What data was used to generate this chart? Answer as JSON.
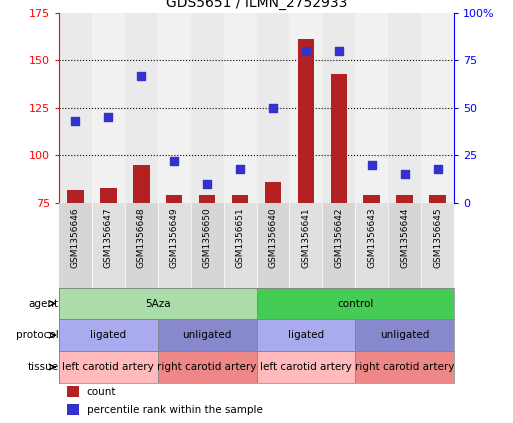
{
  "title": "GDS5651 / ILMN_2752933",
  "samples": [
    "GSM1356646",
    "GSM1356647",
    "GSM1356648",
    "GSM1356649",
    "GSM1356650",
    "GSM1356651",
    "GSM1356640",
    "GSM1356641",
    "GSM1356642",
    "GSM1356643",
    "GSM1356644",
    "GSM1356645"
  ],
  "counts": [
    82,
    83,
    95,
    79,
    79,
    79,
    86,
    161,
    143,
    79,
    79,
    79
  ],
  "percentile": [
    43,
    45,
    67,
    22,
    10,
    18,
    50,
    80,
    80,
    20,
    15,
    18
  ],
  "ylim_left": [
    75,
    175
  ],
  "ylim_right": [
    0,
    100
  ],
  "yticks_left": [
    75,
    100,
    125,
    150,
    175
  ],
  "yticks_right": [
    0,
    25,
    50,
    75,
    100
  ],
  "ytick_labels_right": [
    "0",
    "25",
    "50",
    "75",
    "100%"
  ],
  "bar_color": "#b22222",
  "dot_color": "#3333cc",
  "agent_groups": [
    {
      "label": "5Aza",
      "start": 0,
      "end": 6,
      "color": "#aaddaa"
    },
    {
      "label": "control",
      "start": 6,
      "end": 12,
      "color": "#44cc55"
    }
  ],
  "protocol_groups": [
    {
      "label": "ligated",
      "start": 0,
      "end": 3,
      "color": "#aaaaee"
    },
    {
      "label": "unligated",
      "start": 3,
      "end": 6,
      "color": "#8888cc"
    },
    {
      "label": "ligated",
      "start": 6,
      "end": 9,
      "color": "#aaaaee"
    },
    {
      "label": "unligated",
      "start": 9,
      "end": 12,
      "color": "#8888cc"
    }
  ],
  "tissue_groups": [
    {
      "label": "left carotid artery",
      "start": 0,
      "end": 3,
      "color": "#ffbbbb"
    },
    {
      "label": "right carotid artery",
      "start": 3,
      "end": 6,
      "color": "#ee8888"
    },
    {
      "label": "left carotid artery",
      "start": 6,
      "end": 9,
      "color": "#ffbbbb"
    },
    {
      "label": "right carotid artery",
      "start": 9,
      "end": 12,
      "color": "#ee8888"
    }
  ],
  "legend_labels": [
    "count",
    "percentile rank within the sample"
  ],
  "row_labels": [
    "agent",
    "protocol",
    "tissue"
  ],
  "bar_width": 0.5,
  "dot_size": 30
}
